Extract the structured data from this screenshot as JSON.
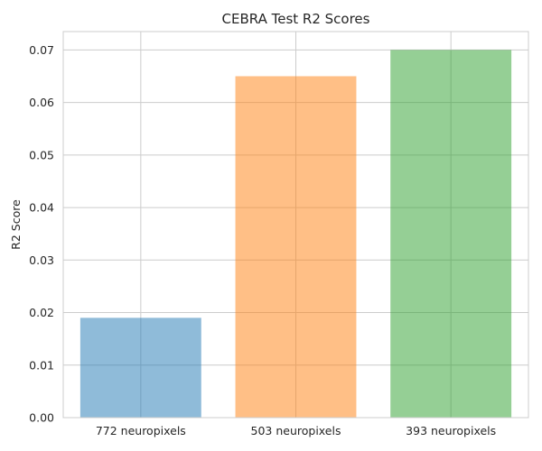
{
  "chart_data": {
    "type": "bar",
    "title": "CEBRA Test R2 Scores",
    "xlabel": "",
    "ylabel": "R2 Score",
    "categories": [
      "772 neuropixels",
      "503 neuropixels",
      "393 neuropixels"
    ],
    "values": [
      0.019,
      0.065,
      0.07
    ],
    "colors": [
      "#1f77b4",
      "#ff7f0e",
      "#2ca02c"
    ],
    "bar_opacity": 0.5,
    "ylim": [
      0,
      0.0735
    ],
    "yticks": [
      0.0,
      0.01,
      0.02,
      0.03,
      0.04,
      0.05,
      0.06,
      0.07
    ],
    "ytick_labels": [
      "0.00",
      "0.01",
      "0.02",
      "0.03",
      "0.04",
      "0.05",
      "0.06",
      "0.07"
    ],
    "grid": true,
    "style": "whitegrid"
  }
}
